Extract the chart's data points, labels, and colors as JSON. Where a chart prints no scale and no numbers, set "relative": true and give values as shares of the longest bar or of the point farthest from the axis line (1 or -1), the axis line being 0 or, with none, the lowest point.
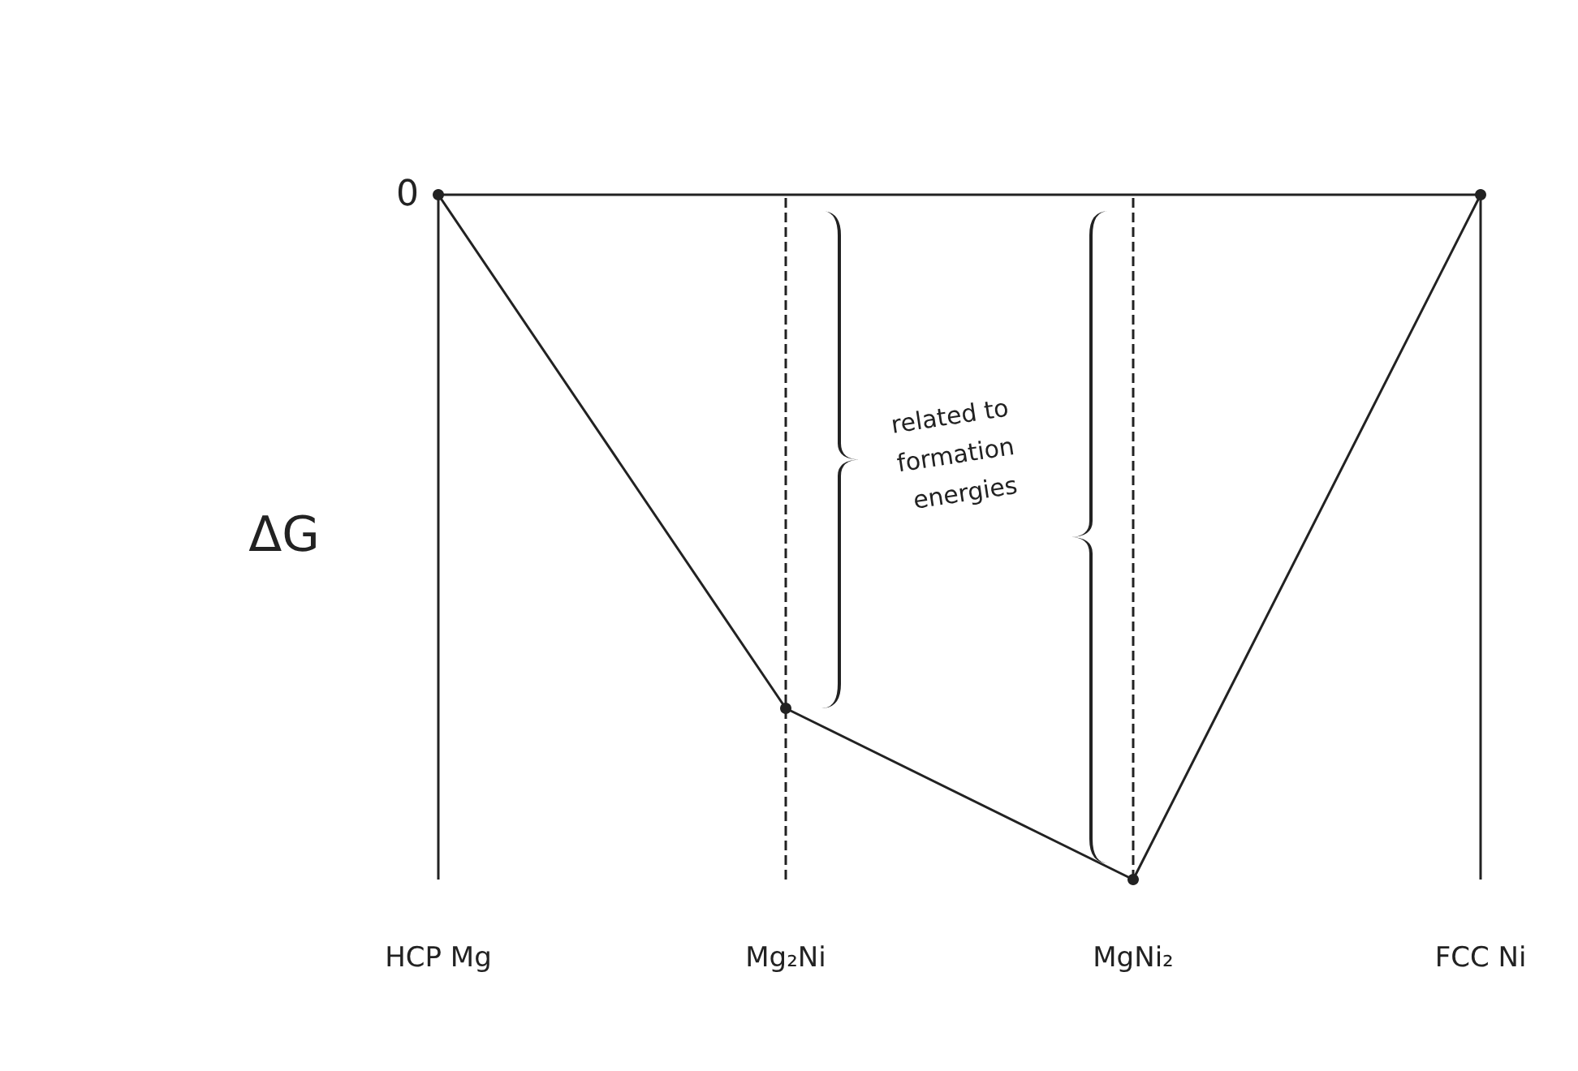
{
  "chart_data": {
    "type": "line",
    "relative": true,
    "ylabel": "ΔG",
    "categories": [
      "HCP Mg",
      "Mg₂Ni",
      "MgNi₂",
      "FCC Ni"
    ],
    "series": [
      {
        "color": "#222222",
        "values": [
          0,
          -0.75,
          -1,
          0
        ]
      }
    ],
    "marker": "circle",
    "line_style": "solid",
    "grid": false,
    "ref_lines": [
      {
        "axis": "y",
        "value": 0,
        "label": "0",
        "color": "#222222",
        "line_style": "solid"
      },
      {
        "axis": "x",
        "value": "HCP Mg",
        "color": "#222222",
        "line_style": "solid"
      },
      {
        "axis": "x",
        "value": "Mg₂Ni",
        "color": "#222222",
        "line_style": "dashed"
      },
      {
        "axis": "x",
        "value": "MgNi₂",
        "color": "#222222",
        "line_style": "dashed"
      },
      {
        "axis": "x",
        "value": "FCC Ni",
        "color": "#222222",
        "line_style": "solid"
      }
    ],
    "annotations": [
      "related to formation energies"
    ]
  }
}
